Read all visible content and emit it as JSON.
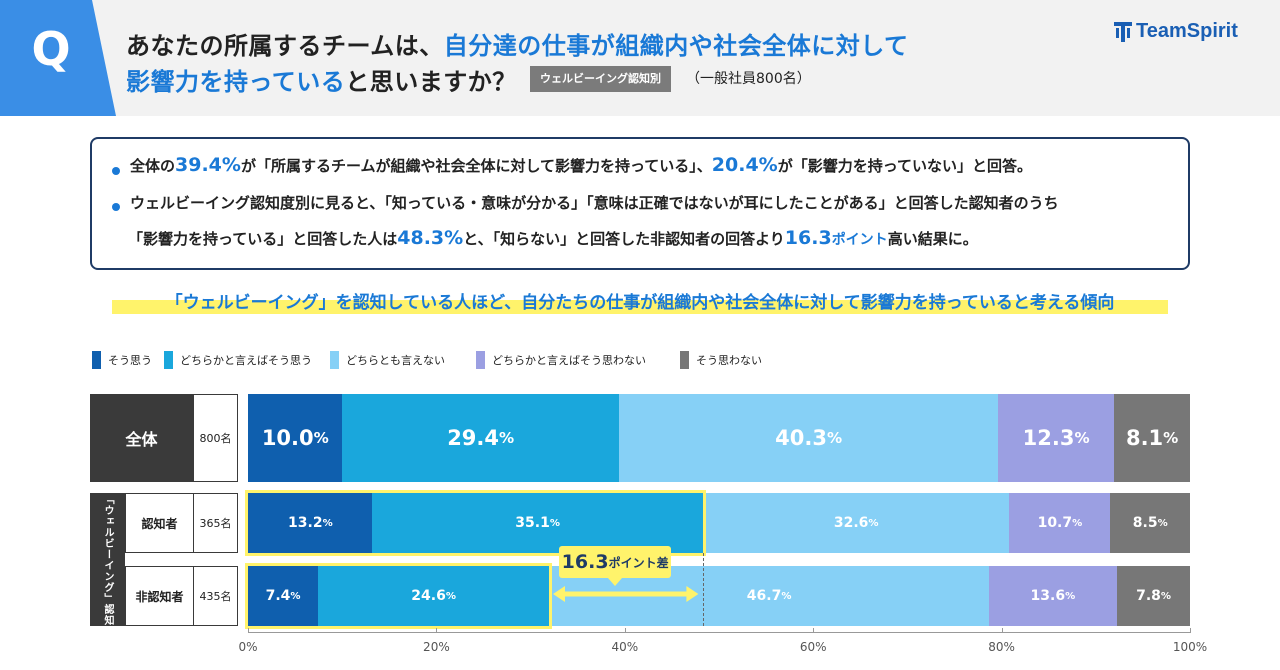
{
  "header": {
    "q_letter": "Q",
    "question_line1_a": "あなたの所属するチームは、",
    "question_line1_b": "自分達の仕事が組織内や社会全体に対して",
    "question_line2_a": "影響力を持っている",
    "question_line2_b": "と思いますか？",
    "segment_tag": "ウェルビーイング認知別",
    "respondents": "（一般社員800名）",
    "brand": "TeamSpirit"
  },
  "summary": {
    "line1": [
      "全体の",
      "39.4%",
      "が「所属するチームが組織や社会全体に対して影響力を持っている」、",
      "20.4%",
      "が「影響力を持っていない」と回答。"
    ],
    "line2": "ウェルビーイング認知度別に見ると、「知っている・意味が分かる」「意味は正確ではないが耳にしたことがある」と回答した認知者のうち",
    "line3": [
      "「影響力を持っている」と回答した人は",
      "48.3%",
      "と、「知らない」と回答した非認知者の回答より",
      "16.3",
      "ポイント",
      "高い結果に。"
    ]
  },
  "headline": "「ウェルビーイング」を認知している人ほど、自分たちの仕事が組織内や社会全体に対して影響力を持っていると考える傾向",
  "colors": {
    "q_blue": "#3a8ee6",
    "strongly_agree": "#0f5fae",
    "somewhat_agree": "#1aa7dc",
    "neutral": "#86d0f6",
    "somewhat_disagree": "#9b9fe2",
    "strongly_disagree": "#777777",
    "highlight": "#fff36b",
    "label_dark": "#3a3a3a"
  },
  "chart_data": {
    "type": "bar",
    "orientation": "horizontal",
    "stacked": true,
    "legend": [
      "そう思う",
      "どちらかと言えばそう思う",
      "どちらとも言えない",
      "どちらかと言えばそう思わない",
      "そう思わない"
    ],
    "legend_placement": "top-left",
    "group_label": "「ウェルビーイング」認知",
    "rows": [
      {
        "label": "全体",
        "n": "800名",
        "values": [
          10.0,
          29.4,
          40.3,
          12.3,
          8.1
        ],
        "value_labels": [
          "10.0%",
          "29.4%",
          "40.3%",
          "12.3%",
          "8.1%"
        ]
      },
      {
        "label": "認知者",
        "n": "365名",
        "values": [
          13.2,
          35.1,
          32.6,
          10.7,
          8.5
        ],
        "value_labels": [
          "13.2%",
          "35.1%",
          "32.6%",
          "10.7%",
          "8.5%"
        ]
      },
      {
        "label": "非認知者",
        "n": "435名",
        "values": [
          7.4,
          24.6,
          46.7,
          13.6,
          7.8
        ],
        "value_labels": [
          "7.4%",
          "24.6%",
          "46.7%",
          "13.6%",
          "7.8%"
        ]
      }
    ],
    "annotation": {
      "value": "16.3",
      "unit": "ポイント差"
    },
    "x_ticks": [
      "0%",
      "20%",
      "40%",
      "60%",
      "80%",
      "100%"
    ],
    "xlim": [
      0,
      100
    ]
  }
}
